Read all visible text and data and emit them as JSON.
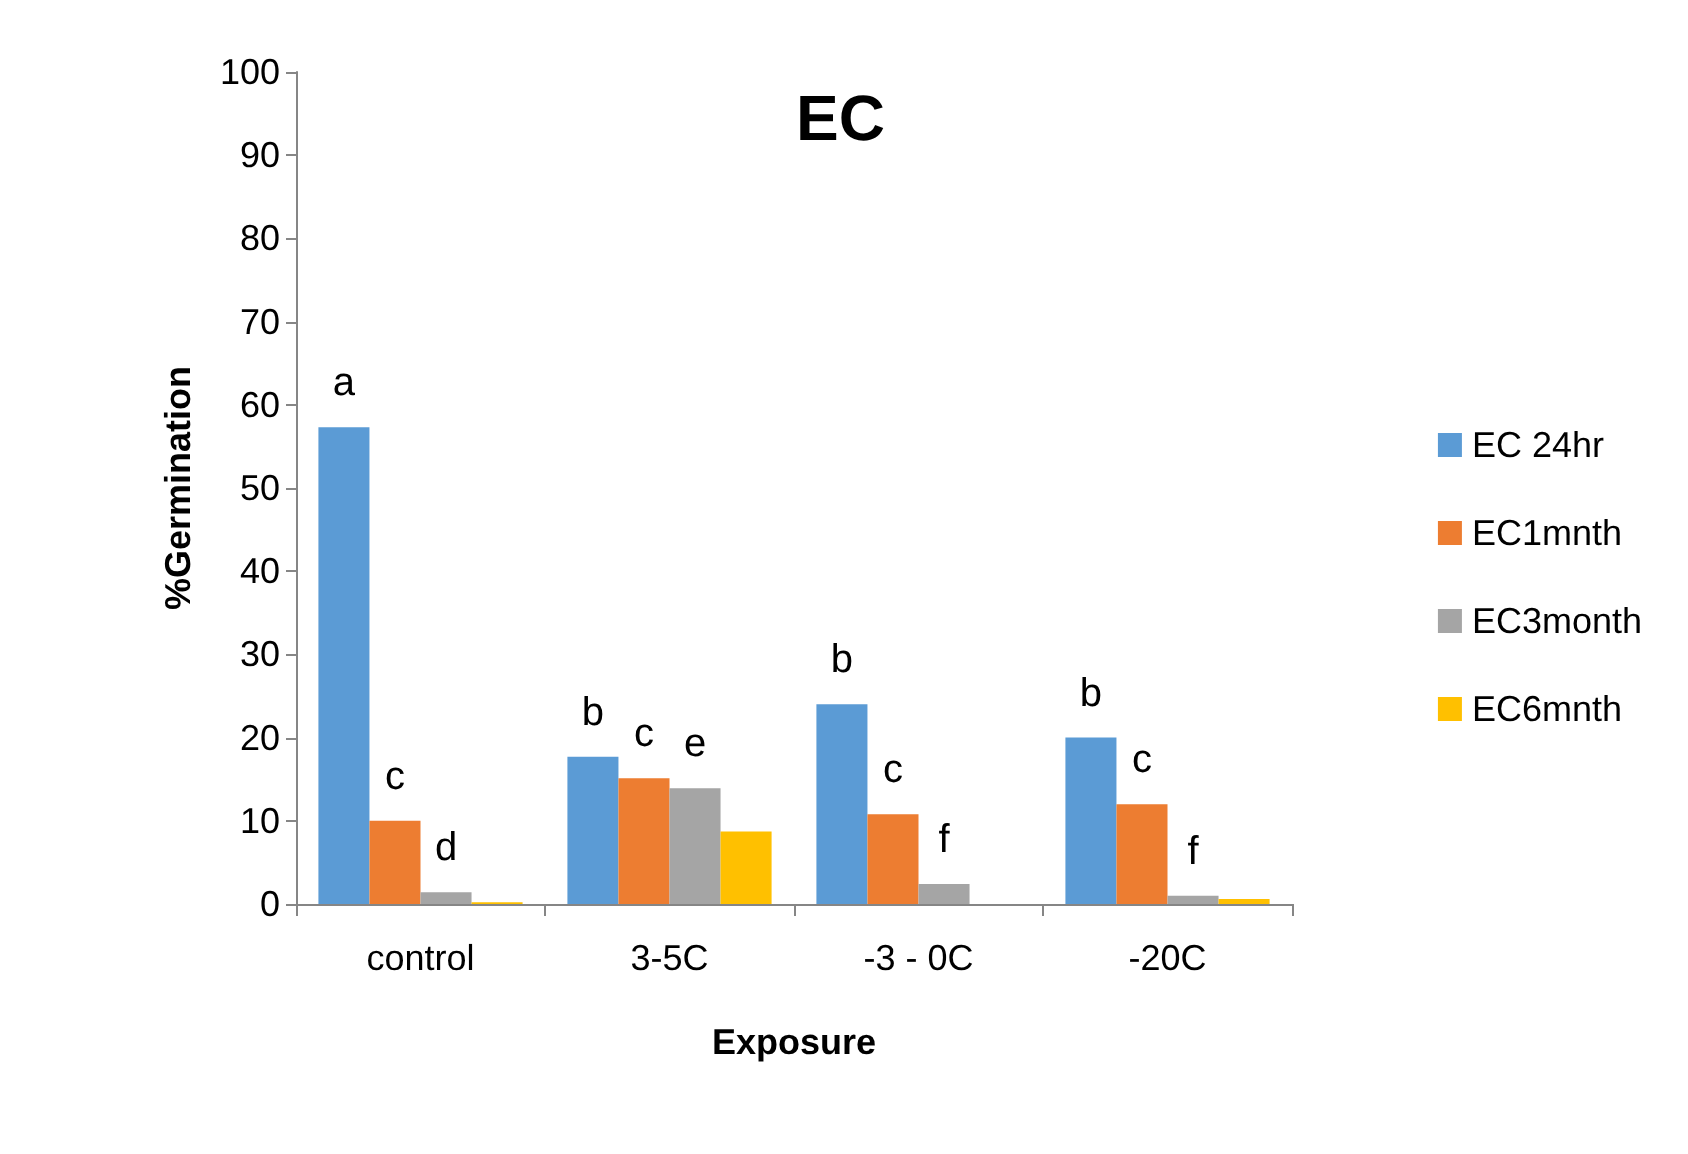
{
  "chart_data": {
    "type": "bar",
    "title": "EC",
    "xlabel": "Exposure",
    "ylabel": "%Germination",
    "categories": [
      "control",
      "3-5C",
      "-3 - 0C",
      "-20C"
    ],
    "series": [
      {
        "name": "EC 24hr",
        "color": "#5b9bd5",
        "values": [
          57.3,
          17.7,
          24,
          20
        ],
        "value_labels": [
          "a",
          "b",
          "b",
          "b"
        ]
      },
      {
        "name": "EC1mnth",
        "color": "#ed7d31",
        "values": [
          10,
          15.1,
          10.8,
          12
        ],
        "value_labels": [
          "c",
          "c",
          "c",
          "c"
        ]
      },
      {
        "name": "EC3month",
        "color": "#a5a5a5",
        "values": [
          1.4,
          13.9,
          2.4,
          1
        ],
        "value_labels": [
          "d",
          "e",
          "f",
          "f"
        ]
      },
      {
        "name": "EC6mnth",
        "color": "#ffc000",
        "values": [
          0.2,
          8.7,
          0,
          0.6
        ]
      }
    ],
    "ylim": [
      0,
      100
    ],
    "yticks": [
      0,
      10,
      20,
      30,
      40,
      50,
      60,
      70,
      80,
      90,
      100
    ],
    "grid": false,
    "legend": "right"
  }
}
